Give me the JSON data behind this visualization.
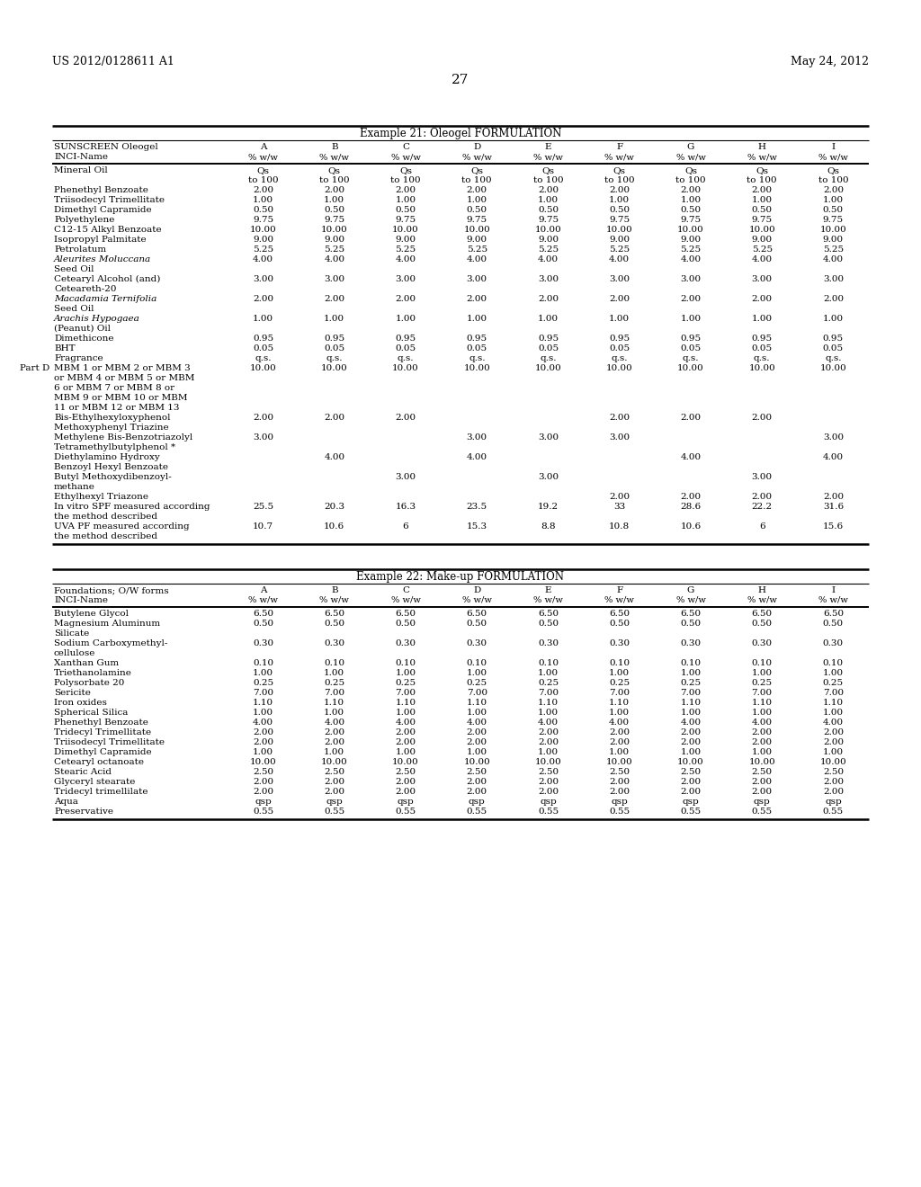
{
  "header_left": "US 2012/0128611 A1",
  "header_right": "May 24, 2012",
  "page_number": "27",
  "background_color": "#ffffff",
  "text_color": "#000000",
  "table1": {
    "title": "Example 21: Oleogel FORMULATION",
    "col_header1": "SUNSCREEN Oleogel",
    "col_header2": "INCI-Name",
    "columns": [
      "A",
      "B",
      "C",
      "D",
      "E",
      "F",
      "G",
      "H",
      "I"
    ],
    "col_units": [
      "% w/w",
      "% w/w",
      "% w/w",
      "% w/w",
      "% w/w",
      "% w/w",
      "% w/w",
      "% w/w",
      "% w/w"
    ],
    "rows": [
      {
        "name": "Mineral Oil",
        "val_line1": "Qs",
        "val_line2": "to 100",
        "values": [
          "Qs",
          "Qs",
          "Qs",
          "Qs",
          "Qs",
          "Qs",
          "Qs",
          "Qs",
          "Qs"
        ],
        "values2": [
          "to 100",
          "to 100",
          "to 100",
          "to 100",
          "to 100",
          "to 100",
          "to 100",
          "to 100",
          "to 100"
        ],
        "two_line_val": true
      },
      {
        "name": "Phenethyl Benzoate",
        "values": [
          "2.00",
          "2.00",
          "2.00",
          "2.00",
          "2.00",
          "2.00",
          "2.00",
          "2.00",
          "2.00"
        ]
      },
      {
        "name": "Triisodecyl Trimellitate",
        "values": [
          "1.00",
          "1.00",
          "1.00",
          "1.00",
          "1.00",
          "1.00",
          "1.00",
          "1.00",
          "1.00"
        ]
      },
      {
        "name": "Dimethyl Capramide",
        "values": [
          "0.50",
          "0.50",
          "0.50",
          "0.50",
          "0.50",
          "0.50",
          "0.50",
          "0.50",
          "0.50"
        ]
      },
      {
        "name": "Polyethylene",
        "values": [
          "9.75",
          "9.75",
          "9.75",
          "9.75",
          "9.75",
          "9.75",
          "9.75",
          "9.75",
          "9.75"
        ]
      },
      {
        "name": "C12-15 Alkyl Benzoate",
        "values": [
          "10.00",
          "10.00",
          "10.00",
          "10.00",
          "10.00",
          "10.00",
          "10.00",
          "10.00",
          "10.00"
        ]
      },
      {
        "name": "Isopropyl Palmitate",
        "values": [
          "9.00",
          "9.00",
          "9.00",
          "9.00",
          "9.00",
          "9.00",
          "9.00",
          "9.00",
          "9.00"
        ]
      },
      {
        "name": "Petrolatum",
        "values": [
          "5.25",
          "5.25",
          "5.25",
          "5.25",
          "5.25",
          "5.25",
          "5.25",
          "5.25",
          "5.25"
        ]
      },
      {
        "name": "Aleurites Moluccana",
        "name2": "Seed Oil",
        "italic1": true,
        "italic2": false,
        "two_line_name": true,
        "values": [
          "4.00",
          "4.00",
          "4.00",
          "4.00",
          "4.00",
          "4.00",
          "4.00",
          "4.00",
          "4.00"
        ]
      },
      {
        "name": "Cetearyl Alcohol (and)",
        "name2": "Ceteareth-20",
        "two_line_name": true,
        "values": [
          "3.00",
          "3.00",
          "3.00",
          "3.00",
          "3.00",
          "3.00",
          "3.00",
          "3.00",
          "3.00"
        ]
      },
      {
        "name": "Macadamia Ternifolia",
        "name2": "Seed Oil",
        "italic1": true,
        "italic2": false,
        "two_line_name": true,
        "values": [
          "2.00",
          "2.00",
          "2.00",
          "2.00",
          "2.00",
          "2.00",
          "2.00",
          "2.00",
          "2.00"
        ]
      },
      {
        "name": "Arachis Hypogaea",
        "name2": "(Peanut) Oil",
        "italic1": true,
        "italic2": false,
        "two_line_name": true,
        "values": [
          "1.00",
          "1.00",
          "1.00",
          "1.00",
          "1.00",
          "1.00",
          "1.00",
          "1.00",
          "1.00"
        ]
      },
      {
        "name": "Dimethicone",
        "values": [
          "0.95",
          "0.95",
          "0.95",
          "0.95",
          "0.95",
          "0.95",
          "0.95",
          "0.95",
          "0.95"
        ]
      },
      {
        "name": "BHT",
        "values": [
          "0.05",
          "0.05",
          "0.05",
          "0.05",
          "0.05",
          "0.05",
          "0.05",
          "0.05",
          "0.05"
        ]
      },
      {
        "name": "Fragrance",
        "values": [
          "q.s.",
          "q.s.",
          "q.s.",
          "q.s.",
          "q.s.",
          "q.s.",
          "q.s.",
          "q.s.",
          "q.s."
        ]
      },
      {
        "name": "MBM 1 or MBM 2 or MBM 3",
        "name_extra": [
          "or MBM 4 or MBM 5 or MBM",
          "6 or MBM 7 or MBM 8 or",
          "MBM 9 or MBM 10 or MBM",
          "11 or MBM 12 or MBM 13"
        ],
        "part": "Part D",
        "values": [
          "10.00",
          "10.00",
          "10.00",
          "10.00",
          "10.00",
          "10.00",
          "10.00",
          "10.00",
          "10.00"
        ],
        "five_line": true
      },
      {
        "name": "Bis-Ethylhexyloxyphenol",
        "name2": "Methoxyphenyl Triazine",
        "two_line_name": true,
        "values": [
          "2.00",
          "2.00",
          "2.00",
          "",
          "",
          "2.00",
          "2.00",
          "2.00",
          ""
        ]
      },
      {
        "name": "Methylene Bis-Benzotriazolyl",
        "name2": "Tetramethylbutylphenol *",
        "two_line_name": true,
        "values": [
          "3.00",
          "",
          "",
          "3.00",
          "3.00",
          "3.00",
          "",
          "",
          "3.00"
        ]
      },
      {
        "name": "Diethylamino Hydroxy",
        "name2": "Benzoyl Hexyl Benzoate",
        "two_line_name": true,
        "values": [
          "",
          "4.00",
          "",
          "4.00",
          "",
          "",
          "4.00",
          "",
          "4.00"
        ]
      },
      {
        "name": "Butyl Methoxydibenzoyl-",
        "name2": "methane",
        "two_line_name": true,
        "values": [
          "",
          "",
          "3.00",
          "",
          "3.00",
          "",
          "",
          "3.00",
          ""
        ]
      },
      {
        "name": "Ethylhexyl Triazone",
        "values": [
          "",
          "",
          "",
          "",
          "",
          "2.00",
          "2.00",
          "2.00",
          "2.00"
        ]
      },
      {
        "name": "In vitro SPF measured according",
        "name2": "the method described",
        "two_line_name": true,
        "values": [
          "25.5",
          "20.3",
          "16.3",
          "23.5",
          "19.2",
          "33",
          "28.6",
          "22.2",
          "31.6"
        ]
      },
      {
        "name": "UVA PF measured according",
        "name2": "the method described",
        "two_line_name": true,
        "values": [
          "10.7",
          "10.6",
          "6",
          "15.3",
          "8.8",
          "10.8",
          "10.6",
          "6",
          "15.6"
        ]
      }
    ]
  },
  "table2": {
    "title": "Example 22: Make-up FORMULATION",
    "col_header1": "Foundations; O/W forms",
    "col_header2": "INCI-Name",
    "columns": [
      "A",
      "B",
      "C",
      "D",
      "E",
      "F",
      "G",
      "H",
      "I"
    ],
    "col_units": [
      "% w/w",
      "% w/w",
      "% w/w",
      "% w/w",
      "% w/w",
      "% w/w",
      "% w/w",
      "% w/w",
      "% w/w"
    ],
    "rows": [
      {
        "name": "Butylene Glycol",
        "values": [
          "6.50",
          "6.50",
          "6.50",
          "6.50",
          "6.50",
          "6.50",
          "6.50",
          "6.50",
          "6.50"
        ]
      },
      {
        "name": "Magnesium Aluminum",
        "name2": "Silicate",
        "two_line_name": true,
        "values": [
          "0.50",
          "0.50",
          "0.50",
          "0.50",
          "0.50",
          "0.50",
          "0.50",
          "0.50",
          "0.50"
        ]
      },
      {
        "name": "Sodium Carboxymethyl-",
        "name2": "cellulose",
        "two_line_name": true,
        "values": [
          "0.30",
          "0.30",
          "0.30",
          "0.30",
          "0.30",
          "0.30",
          "0.30",
          "0.30",
          "0.30"
        ]
      },
      {
        "name": "Xanthan Gum",
        "values": [
          "0.10",
          "0.10",
          "0.10",
          "0.10",
          "0.10",
          "0.10",
          "0.10",
          "0.10",
          "0.10"
        ]
      },
      {
        "name": "Triethanolamine",
        "values": [
          "1.00",
          "1.00",
          "1.00",
          "1.00",
          "1.00",
          "1.00",
          "1.00",
          "1.00",
          "1.00"
        ]
      },
      {
        "name": "Polysorbate 20",
        "values": [
          "0.25",
          "0.25",
          "0.25",
          "0.25",
          "0.25",
          "0.25",
          "0.25",
          "0.25",
          "0.25"
        ]
      },
      {
        "name": "Sericite",
        "values": [
          "7.00",
          "7.00",
          "7.00",
          "7.00",
          "7.00",
          "7.00",
          "7.00",
          "7.00",
          "7.00"
        ]
      },
      {
        "name": "Iron oxides",
        "values": [
          "1.10",
          "1.10",
          "1.10",
          "1.10",
          "1.10",
          "1.10",
          "1.10",
          "1.10",
          "1.10"
        ]
      },
      {
        "name": "Spherical Silica",
        "values": [
          "1.00",
          "1.00",
          "1.00",
          "1.00",
          "1.00",
          "1.00",
          "1.00",
          "1.00",
          "1.00"
        ]
      },
      {
        "name": "Phenethyl Benzoate",
        "values": [
          "4.00",
          "4.00",
          "4.00",
          "4.00",
          "4.00",
          "4.00",
          "4.00",
          "4.00",
          "4.00"
        ]
      },
      {
        "name": "Tridecyl Trimellitate",
        "values": [
          "2.00",
          "2.00",
          "2.00",
          "2.00",
          "2.00",
          "2.00",
          "2.00",
          "2.00",
          "2.00"
        ]
      },
      {
        "name": "Triisodecyl Trimellitate",
        "values": [
          "2.00",
          "2.00",
          "2.00",
          "2.00",
          "2.00",
          "2.00",
          "2.00",
          "2.00",
          "2.00"
        ]
      },
      {
        "name": "Dimethyl Capramide",
        "values": [
          "1.00",
          "1.00",
          "1.00",
          "1.00",
          "1.00",
          "1.00",
          "1.00",
          "1.00",
          "1.00"
        ]
      },
      {
        "name": "Cetearyl octanoate",
        "values": [
          "10.00",
          "10.00",
          "10.00",
          "10.00",
          "10.00",
          "10.00",
          "10.00",
          "10.00",
          "10.00"
        ]
      },
      {
        "name": "Stearic Acid",
        "values": [
          "2.50",
          "2.50",
          "2.50",
          "2.50",
          "2.50",
          "2.50",
          "2.50",
          "2.50",
          "2.50"
        ]
      },
      {
        "name": "Glyceryl stearate",
        "values": [
          "2.00",
          "2.00",
          "2.00",
          "2.00",
          "2.00",
          "2.00",
          "2.00",
          "2.00",
          "2.00"
        ]
      },
      {
        "name": "Tridecyl trimellilate",
        "values": [
          "2.00",
          "2.00",
          "2.00",
          "2.00",
          "2.00",
          "2.00",
          "2.00",
          "2.00",
          "2.00"
        ]
      },
      {
        "name": "Aqua",
        "values": [
          "qsp",
          "qsp",
          "qsp",
          "qsp",
          "qsp",
          "qsp",
          "qsp",
          "qsp",
          "qsp"
        ]
      },
      {
        "name": "Preservative",
        "values": [
          "0.55",
          "0.55",
          "0.55",
          "0.55",
          "0.55",
          "0.55",
          "0.55",
          "0.55",
          "0.55"
        ]
      }
    ]
  }
}
